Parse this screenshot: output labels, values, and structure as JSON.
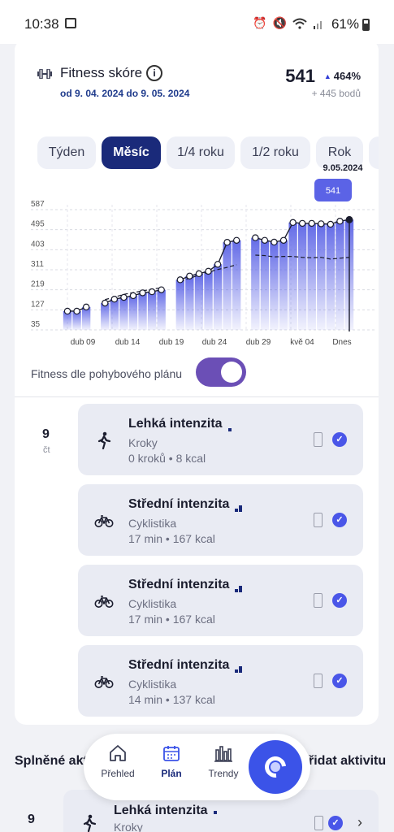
{
  "status_bar": {
    "time": "10:38",
    "battery": "61%"
  },
  "header": {
    "title": "Fitness skóre",
    "date_range": "od 9. 04. 2024 do 9. 05. 2024",
    "score": "541",
    "delta": "464%",
    "points": "+ 445 bodů"
  },
  "tabs": [
    {
      "label": "Týden",
      "active": false
    },
    {
      "label": "Měsíc",
      "active": true
    },
    {
      "label": "1/4 roku",
      "active": false
    },
    {
      "label": "1/2 roku",
      "active": false
    },
    {
      "label": "Rok",
      "active": false
    }
  ],
  "chart_data": {
    "type": "bar",
    "y_ticks": [
      35,
      127,
      219,
      311,
      403,
      495,
      587
    ],
    "ylim": [
      35,
      587
    ],
    "x_tick_labels": [
      "dub 09",
      "dub 14",
      "dub 19",
      "dub 24",
      "dub 29",
      "kvě 04",
      "Dnes"
    ],
    "selected_date": "9.05.2024",
    "selected_value": "541",
    "colors": {
      "bar": "#5b63e6",
      "line": "#1b1d2e"
    },
    "days": 31,
    "series": [
      {
        "values": [
          121,
          121,
          140,
          null,
          158,
          176,
          184,
          192,
          205,
          210,
          219,
          null,
          265,
          282,
          293,
          304,
          336,
          437,
          446,
          null,
          458,
          446,
          438,
          446,
          528,
          524,
          524,
          522,
          520,
          534,
          541
        ]
      }
    ],
    "dashed_trend": [
      null,
      null,
      null,
      null,
      174,
      185,
      198,
      206,
      214,
      222,
      228,
      null,
      258,
      272,
      286,
      300,
      312,
      322,
      334,
      null,
      378,
      376,
      370,
      372,
      372,
      368,
      366,
      368,
      360,
      364,
      368
    ]
  },
  "plan_toggle": {
    "label": "Fitness dle pohybového plánu",
    "on": true
  },
  "day": {
    "number": "9",
    "weekday": "čt"
  },
  "activities": [
    {
      "name": "Lehká intenzita",
      "type": "Kroky",
      "meta": "0 kroků • 8 kcal",
      "icon": "walk-icon",
      "level": 1
    },
    {
      "name": "Střední intenzita",
      "type": "Cyklistika",
      "meta": "17 min • 167 kcal",
      "icon": "bike-icon",
      "level": 2
    },
    {
      "name": "Střední intenzita",
      "type": "Cyklistika",
      "meta": "17 min • 167 kcal",
      "icon": "bike-icon",
      "level": 2
    },
    {
      "name": "Střední intenzita",
      "type": "Cyklistika",
      "meta": "14 min • 137 kcal",
      "icon": "bike-icon",
      "level": 2
    }
  ],
  "completed_section": {
    "title": "Splněné akt",
    "add_label": "řidat aktivitu",
    "day_number": "9",
    "item": {
      "name": "Lehká intenzita",
      "type": "Kroky",
      "icon": "walk-icon"
    }
  },
  "nav": [
    {
      "label": "Přehled",
      "icon": "home-icon",
      "active": false
    },
    {
      "label": "Plán",
      "icon": "calendar-icon",
      "active": true
    },
    {
      "label": "Trendy",
      "icon": "bar-chart-icon",
      "active": false
    }
  ]
}
